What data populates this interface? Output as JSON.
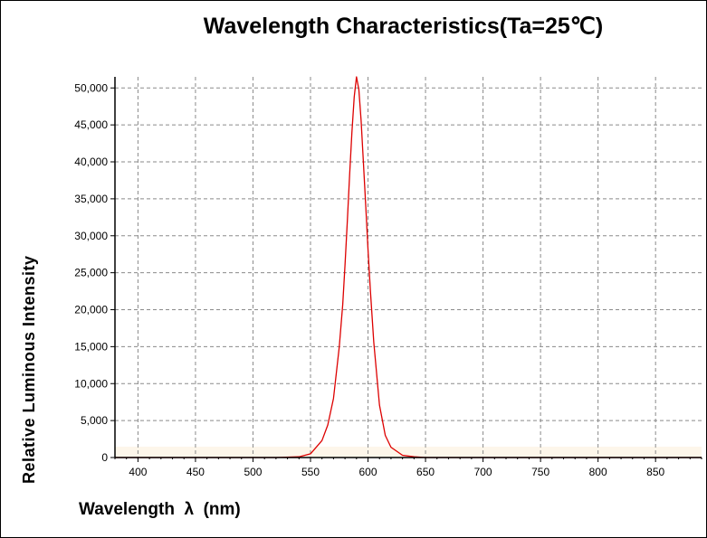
{
  "chart_data": {
    "type": "line",
    "title": "Wavelength  Characteristics(Ta=25℃)",
    "xlabel": "Wavelength  λ  (nm)",
    "ylabel": "Relative  Luminous  Intensity",
    "xlim": [
      380,
      890
    ],
    "ylim": [
      0,
      51500
    ],
    "xticks": [
      "400",
      "450",
      "500",
      "550",
      "600",
      "650",
      "700",
      "750",
      "800",
      "850"
    ],
    "yticks": [
      "0",
      "5,000",
      "10,000",
      "15,000",
      "20,000",
      "25,000",
      "30,000",
      "35,000",
      "40,000",
      "45,000",
      "50,000"
    ],
    "grid": true,
    "series": [
      {
        "color": "#dd0000",
        "x": [
          380,
          520,
          540,
          550,
          560,
          565,
          570,
          575,
          578,
          580,
          582,
          584,
          586,
          588,
          590,
          592,
          594,
          596,
          598,
          600,
          602,
          605,
          610,
          615,
          620,
          630,
          640,
          650,
          700,
          890
        ],
        "y": [
          0,
          0,
          100,
          500,
          2300,
          4400,
          8000,
          15000,
          20700,
          26000,
          32000,
          38200,
          43900,
          48800,
          51500,
          49800,
          45600,
          40000,
          34100,
          28200,
          22700,
          15600,
          7100,
          3000,
          1400,
          300,
          100,
          0,
          0,
          0
        ]
      }
    ]
  }
}
